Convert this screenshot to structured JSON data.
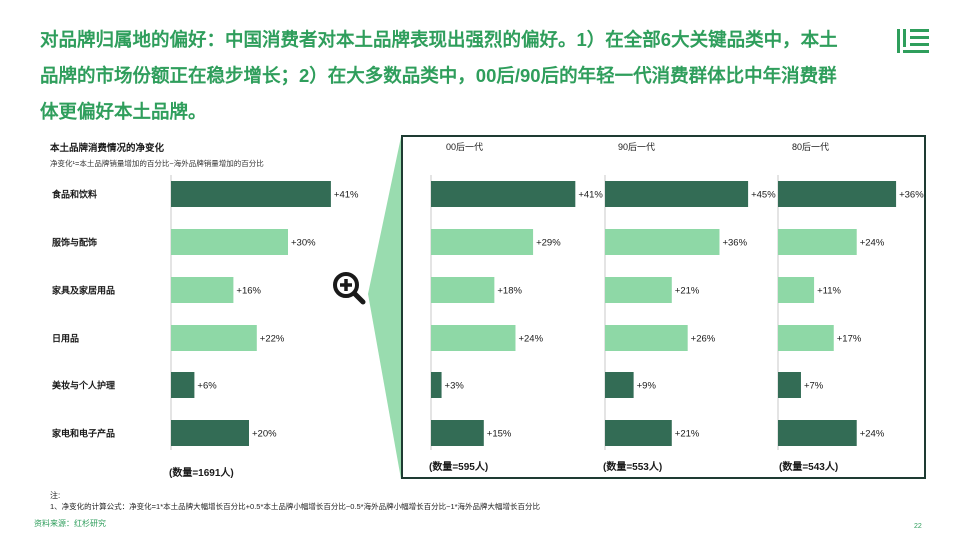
{
  "headline": "对品牌归属地的偏好：中国消费者对本土品牌表现出强烈的偏好。1）在全部6大关键品类中，本土品牌的市场份额正在稳步增长；2）在大多数品类中，00后/90后的年轻一代消费群体比中年消费群体更偏好本土品牌。",
  "colors": {
    "dark": "#336c55",
    "light": "#8ed8a6",
    "accent": "#2f9e5c",
    "frame": "#1e3b32"
  },
  "icons": {
    "logo": "brand-logo-icon",
    "zoom": "magnifier-plus-icon"
  },
  "chart_data": [
    {
      "type": "bar",
      "orientation": "horizontal",
      "title": "本土品牌消费情况的净变化",
      "subtitle": "净变化¹=本土品牌销量增加的百分比−海外品牌销量增加的百分比",
      "categories": [
        "食品和饮料",
        "服饰与配饰",
        "家具及家居用品",
        "日用品",
        "美妆与个人护理",
        "家电和电子产品"
      ],
      "values": [
        41,
        30,
        16,
        22,
        6,
        20
      ],
      "value_labels": [
        "+41%",
        "+30%",
        "+16%",
        "+22%",
        "+6%",
        "+20%"
      ],
      "shades": [
        "dark",
        "light",
        "light",
        "light",
        "dark",
        "dark"
      ],
      "sample": "(数量=1691人)"
    },
    {
      "type": "bar",
      "orientation": "horizontal",
      "title": "00后一代",
      "categories": [
        "食品和饮料",
        "服饰与配饰",
        "家具及家居用品",
        "日用品",
        "美妆与个人护理",
        "家电和电子产品"
      ],
      "values": [
        41,
        29,
        18,
        24,
        3,
        15
      ],
      "value_labels": [
        "+41%",
        "+29%",
        "+18%",
        "+24%",
        "+3%",
        "+15%"
      ],
      "shades": [
        "dark",
        "light",
        "light",
        "light",
        "dark",
        "dark"
      ],
      "sample": "(数量=595人)"
    },
    {
      "type": "bar",
      "orientation": "horizontal",
      "title": "90后一代",
      "categories": [
        "食品和饮料",
        "服饰与配饰",
        "家具及家居用品",
        "日用品",
        "美妆与个人护理",
        "家电和电子产品"
      ],
      "values": [
        45,
        36,
        21,
        26,
        9,
        21
      ],
      "value_labels": [
        "+45%",
        "+36%",
        "+21%",
        "+26%",
        "+9%",
        "+21%"
      ],
      "shades": [
        "dark",
        "light",
        "light",
        "light",
        "dark",
        "dark"
      ],
      "sample": "(数量=553人)"
    },
    {
      "type": "bar",
      "orientation": "horizontal",
      "title": "80后一代",
      "categories": [
        "食品和饮料",
        "服饰与配饰",
        "家具及家居用品",
        "日用品",
        "美妆与个人护理",
        "家电和电子产品"
      ],
      "values": [
        36,
        24,
        11,
        17,
        7,
        24
      ],
      "value_labels": [
        "+36%",
        "+24%",
        "+11%",
        "+17%",
        "+7%",
        "+24%"
      ],
      "shades": [
        "dark",
        "light",
        "light",
        "light",
        "dark",
        "dark"
      ],
      "sample": "(数量=543人)"
    }
  ],
  "notes": {
    "label": "注:",
    "text": "1、净变化的计算公式：净变化=1*本土品牌大幅增长百分比+0.5*本土品牌小幅增长百分比−0.5*海外品牌小幅增长百分比−1*海外品牌大幅增长百分比"
  },
  "source": "资料来源：红杉研究",
  "page_number": "22"
}
